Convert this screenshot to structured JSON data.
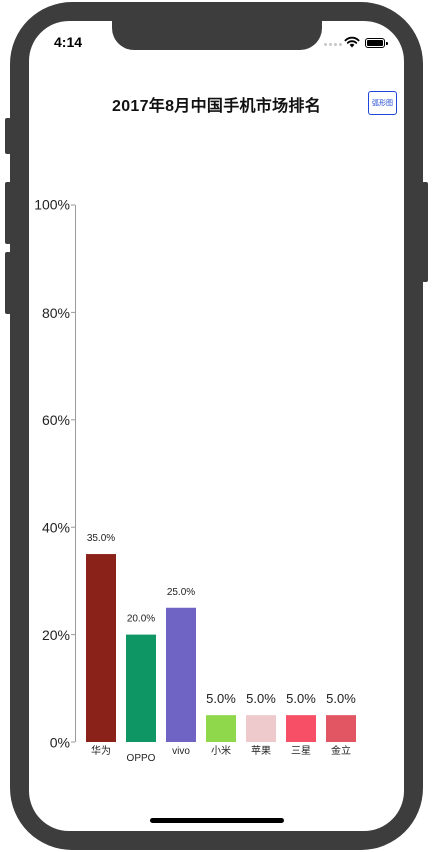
{
  "status_bar": {
    "time": "4:14"
  },
  "nav": {
    "title": "2017年8月中国手机市场排名",
    "right_button": "弧形图"
  },
  "chart_data": {
    "type": "bar",
    "title": "2017年8月中国手机市场排名",
    "categories": [
      "华为",
      "OPPO",
      "vivo",
      "小米",
      "苹果",
      "三星",
      "金立"
    ],
    "values": [
      35.0,
      20.0,
      25.0,
      5.0,
      5.0,
      5.0,
      5.0
    ],
    "data_labels": [
      "35.0%",
      "20.0%",
      "25.0%",
      "5.0%",
      "5.0%",
      "5.0%",
      "5.0%"
    ],
    "colors": [
      "#8b2219",
      "#0e9764",
      "#6f63c4",
      "#8fd84c",
      "#eecacc",
      "#f74f66",
      "#e25562"
    ],
    "ylim": [
      0,
      100
    ],
    "yticks": [
      0,
      20,
      40,
      60,
      80,
      100
    ],
    "ytick_labels": [
      "0%",
      "20%",
      "40%",
      "60%",
      "80%",
      "100%"
    ],
    "xlabel": "",
    "ylabel": "",
    "grid": false,
    "legend": false
  }
}
